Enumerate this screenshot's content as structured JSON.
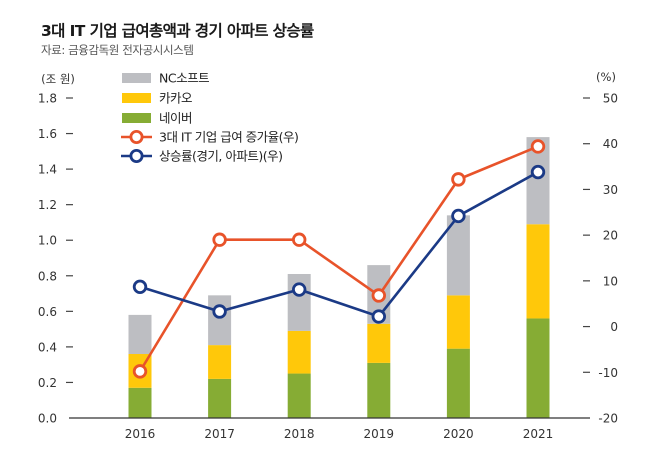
{
  "header": {
    "title": "3대 IT 기업 급여총액과 경기 아파트 상승률",
    "source": "자료: 금융감독원 전자공시시스템"
  },
  "colors": {
    "nc": "#BDBEC2",
    "kakao": "#FFC80A",
    "naver": "#86AC34",
    "wage_growth": "#E8532A",
    "apt_rise": "#1B3A86",
    "axis": "#333333",
    "marker_fill": "#FFFFFF"
  },
  "chart_data": {
    "type": "bar",
    "subtype": "stacked-bar-with-dual-axis-lines",
    "title": "3대 IT 기업 급여총액과 경기 아파트 상승률",
    "source": "자료: 금융감독원 전자공시시스템",
    "categories": [
      "2016",
      "2017",
      "2018",
      "2019",
      "2020",
      "2021"
    ],
    "left_axis": {
      "unit_label": "(조 원)",
      "ylim": [
        0.0,
        1.8
      ],
      "ticks": [
        "0.0",
        "0.2",
        "0.4",
        "0.6",
        "0.8",
        "1.0",
        "1.2",
        "1.4",
        "1.6",
        "1.8"
      ]
    },
    "right_axis": {
      "unit_label": "(%)",
      "ylim": [
        -20,
        50
      ],
      "ticks": [
        "-20",
        "-10",
        "0",
        "10",
        "20",
        "30",
        "40",
        "50"
      ]
    },
    "bar_series": [
      {
        "key": "naver",
        "name": "네이버",
        "axis": "left",
        "values": [
          0.17,
          0.22,
          0.25,
          0.31,
          0.39,
          0.56
        ]
      },
      {
        "key": "kakao",
        "name": "카카오",
        "axis": "left",
        "values": [
          0.19,
          0.19,
          0.24,
          0.22,
          0.3,
          0.53
        ]
      },
      {
        "key": "nc",
        "name": "NC소프트",
        "axis": "left",
        "values": [
          0.22,
          0.28,
          0.32,
          0.33,
          0.45,
          0.49
        ]
      }
    ],
    "line_series": [
      {
        "key": "wage_growth",
        "name": "3대 IT 기업 급여 증가율(우)",
        "axis": "right",
        "values": [
          -9.8,
          19.0,
          19.0,
          6.8,
          32.2,
          39.4
        ]
      },
      {
        "key": "apt_rise",
        "name": "상승률(경기, 아파트)(우)",
        "axis": "right",
        "values": [
          8.7,
          3.3,
          8.1,
          2.2,
          24.2,
          33.8
        ]
      }
    ],
    "legend": {
      "placement": "top-left",
      "order": [
        "nc",
        "kakao",
        "naver",
        "wage_growth",
        "apt_rise"
      ]
    },
    "grid": false
  }
}
